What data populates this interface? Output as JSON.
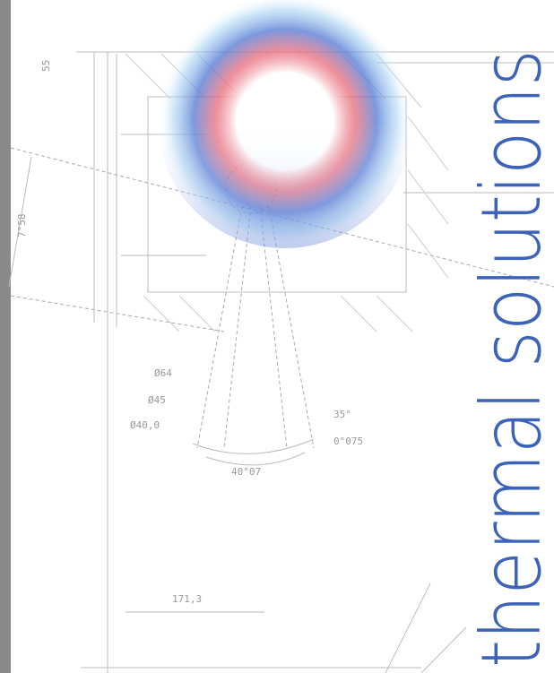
{
  "brand": {
    "title": "thermal solutions"
  },
  "drawing": {
    "labels": [
      "55",
      "7°58",
      "Ø64",
      "Ø45",
      "Ø40,0",
      "35°",
      "0°075",
      "40°07",
      "171,3"
    ]
  }
}
